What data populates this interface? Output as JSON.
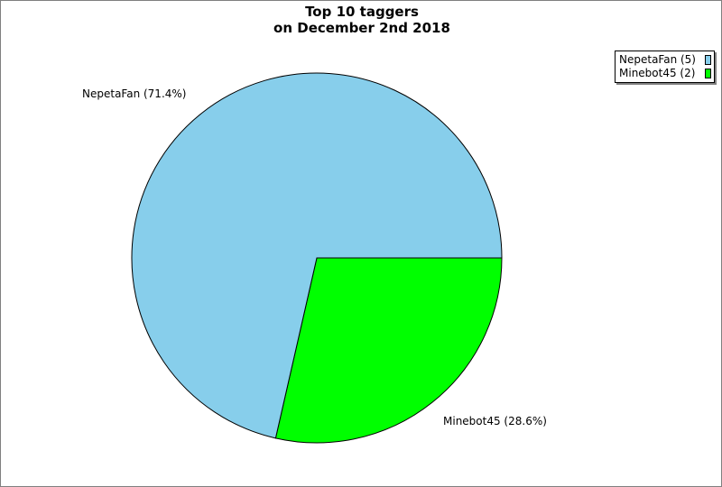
{
  "chart_data": {
    "type": "pie",
    "title": [
      "Top 10 taggers",
      "on December 2nd 2018"
    ],
    "slices": [
      {
        "name": "NepetaFan",
        "value": 5,
        "percent": 71.4,
        "label": "NepetaFan (71.4%)",
        "legend": "NepetaFan (5)",
        "color": "#87CEEB"
      },
      {
        "name": "Minebot45",
        "value": 2,
        "percent": 28.6,
        "label": "Minebot45 (28.6%)",
        "legend": "Minebot45 (2)",
        "color": "#00FF00"
      }
    ],
    "legend_position": "top-right"
  }
}
